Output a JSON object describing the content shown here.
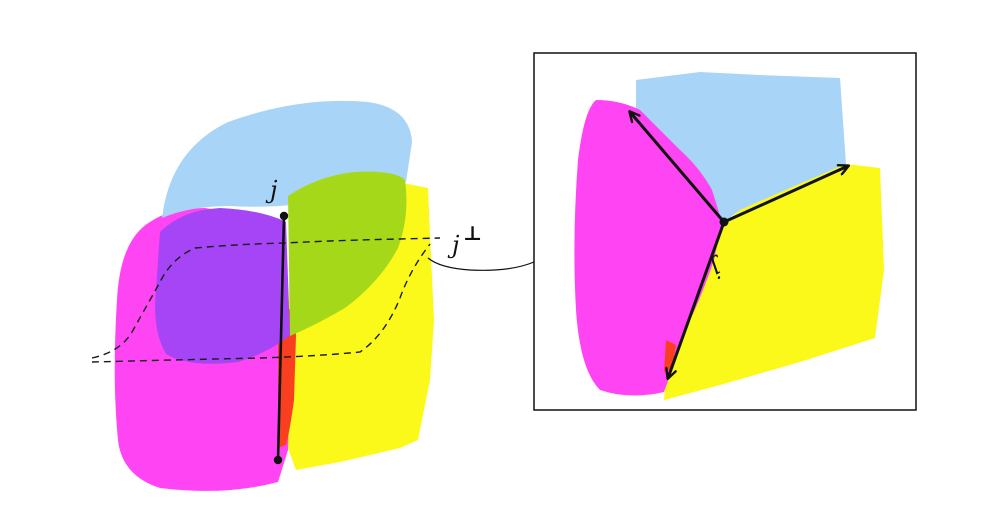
{
  "labels": {
    "left_axis": "j",
    "perp_plane": "j",
    "perp_sup": "⊥",
    "inset_axis": "j"
  },
  "colors": {
    "blue": "#a8d4f7",
    "green": "#a6d81a",
    "purple": "#a545f5",
    "magenta": "#ff45f3",
    "yellow": "#fbf91a",
    "red": "#fa3e20",
    "ink": "#111111"
  },
  "icons": {
    "axis_endpoint": "dot-icon",
    "vector_tip": "arrowhead-icon"
  }
}
